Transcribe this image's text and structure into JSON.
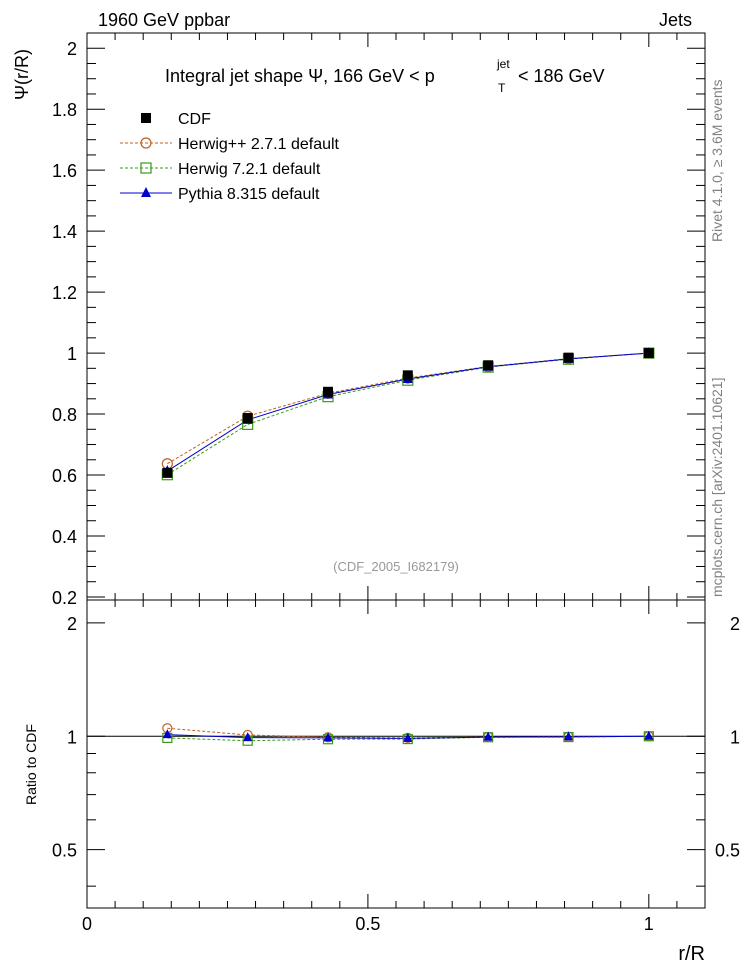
{
  "header": {
    "left_label": "1960 GeV ppbar",
    "right_label": "Jets"
  },
  "side_labels": {
    "rivet": "Rivet 4.1.0, ≥ 3.6M events",
    "mcplots": "mcplots.cern.ch [arXiv:2401.10621]"
  },
  "chart_data": {
    "type": "line",
    "title": {
      "prefix": "Integral jet shape  Ψ, 166 GeV < p",
      "sup": "jet",
      "sub": "T",
      "suffix": "< 186 GeV"
    },
    "watermark": "(CDF_2005_I682179)",
    "ylabel": "Ψ(r/R)",
    "ratio_ylabel": "Ratio to CDF",
    "xlabel": "r/R",
    "xlim": [
      0,
      1.1
    ],
    "ylim": [
      0.19,
      2.05
    ],
    "ratio_ylim": [
      0.35,
      2.3
    ],
    "x_ticks": [
      "0",
      "0.5",
      "1"
    ],
    "y_ticks": [
      "0.2",
      "0.4",
      "0.6",
      "0.8",
      "1",
      "1.2",
      "1.4",
      "1.6",
      "1.8",
      "2"
    ],
    "ratio_ticks": [
      "0.5",
      "1",
      "2"
    ],
    "x": [
      0.143,
      0.286,
      0.429,
      0.571,
      0.714,
      0.857,
      1.0
    ],
    "series": [
      {
        "name": "CDF",
        "color": "#000000",
        "marker": "filled-square",
        "values": [
          0.607,
          0.787,
          0.873,
          0.927,
          0.96,
          0.985,
          1.0
        ],
        "ratio": [
          1.0,
          1.0,
          1.0,
          1.0,
          1.0,
          1.0,
          1.0
        ]
      },
      {
        "name": "Herwig++ 2.7.1 default",
        "color": "#c06020",
        "marker": "open-circle",
        "values": [
          0.637,
          0.793,
          0.868,
          0.918,
          0.956,
          0.982,
          1.0
        ],
        "ratio": [
          1.05,
          1.008,
          0.994,
          0.99,
          0.996,
          0.997,
          1.0
        ]
      },
      {
        "name": "Herwig 7.2.1 default",
        "color": "#3a9a1a",
        "marker": "open-square",
        "values": [
          0.601,
          0.766,
          0.857,
          0.911,
          0.954,
          0.98,
          1.0
        ],
        "ratio": [
          0.99,
          0.973,
          0.982,
          0.983,
          0.994,
          0.995,
          1.0
        ]
      },
      {
        "name": "Pythia 8.315 default",
        "color": "#0000cc",
        "marker": "filled-triangle",
        "values": [
          0.613,
          0.781,
          0.864,
          0.915,
          0.955,
          0.981,
          1.0
        ],
        "ratio": [
          1.01,
          0.992,
          0.99,
          0.987,
          0.995,
          0.996,
          1.0
        ]
      }
    ]
  }
}
